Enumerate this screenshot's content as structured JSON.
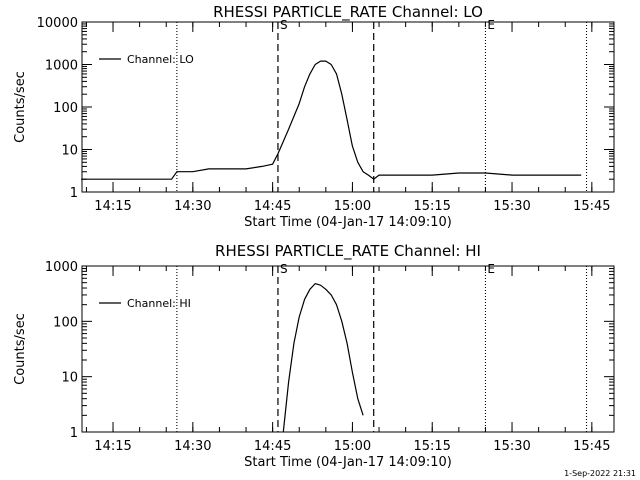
{
  "footer_stamp": "1-Sep-2022 21:31",
  "chart_data": [
    {
      "type": "line",
      "title": "RHESSI PARTICLE_RATE Channel: LO",
      "xlabel": "Start Time (04-Jan-17 14:09:10)",
      "ylabel": "Counts/sec",
      "y_scale": "log",
      "ylim": [
        1,
        10000
      ],
      "y_tick_labels": [
        "1",
        "10",
        "100",
        "1000",
        "10000"
      ],
      "y_tick_values": [
        1,
        10,
        100,
        1000,
        10000
      ],
      "x_range": [
        "14:09:10",
        "15:49:10"
      ],
      "x_tick_labels": [
        "14:15",
        "14:30",
        "14:45",
        "15:00",
        "15:15",
        "15:30",
        "15:45"
      ],
      "x_tick_times": [
        "14:15",
        "14:30",
        "14:45",
        "15:00",
        "15:15",
        "15:30",
        "15:45"
      ],
      "legend": {
        "label": "Channel: LO",
        "placement": "top-left"
      },
      "markers": [
        {
          "label": "",
          "time": "14:27",
          "style": "dotted"
        },
        {
          "label": "S",
          "time": "14:46",
          "style": "dashed"
        },
        {
          "label": "",
          "time": "15:04",
          "style": "dashed"
        },
        {
          "label": "E",
          "time": "15:25",
          "style": "dotted"
        },
        {
          "label": "",
          "time": "15:44",
          "style": "dotted"
        }
      ],
      "series": [
        {
          "name": "Channel: LO",
          "x": [
            "14:09",
            "14:14",
            "14:19",
            "14:24",
            "14:26",
            "14:27",
            "14:30",
            "14:33",
            "14:37",
            "14:40",
            "14:43",
            "14:45",
            "14:46",
            "14:48",
            "14:50",
            "14:51",
            "14:52",
            "14:53",
            "14:54",
            "14:55",
            "14:56",
            "14:57",
            "14:58",
            "14:59",
            "15:00",
            "15:01",
            "15:02",
            "15:03",
            "15:04",
            "15:05",
            "15:06",
            "15:07",
            "15:10",
            "15:15",
            "15:20",
            "15:25",
            "15:30",
            "15:35",
            "15:40",
            "15:43"
          ],
          "values": [
            2,
            2,
            2,
            2,
            2,
            3,
            3,
            3.5,
            3.5,
            3.5,
            4,
            4.5,
            8,
            30,
            120,
            300,
            600,
            1000,
            1200,
            1200,
            1000,
            600,
            200,
            50,
            12,
            5,
            3,
            2.5,
            2,
            2.5,
            2.5,
            2.5,
            2.5,
            2.5,
            2.8,
            2.8,
            2.5,
            2.5,
            2.5,
            2.5
          ]
        }
      ]
    },
    {
      "type": "line",
      "title": "RHESSI PARTICLE_RATE Channel: HI",
      "xlabel": "Start Time (04-Jan-17 14:09:10)",
      "ylabel": "Counts/sec",
      "y_scale": "log",
      "ylim": [
        1,
        1000
      ],
      "y_tick_labels": [
        "1",
        "10",
        "100",
        "1000"
      ],
      "y_tick_values": [
        1,
        10,
        100,
        1000
      ],
      "x_range": [
        "14:09:10",
        "15:49:10"
      ],
      "x_tick_labels": [
        "14:15",
        "14:30",
        "14:45",
        "15:00",
        "15:15",
        "15:30",
        "15:45"
      ],
      "x_tick_times": [
        "14:15",
        "14:30",
        "14:45",
        "15:00",
        "15:15",
        "15:30",
        "15:45"
      ],
      "legend": {
        "label": "Channel: HI",
        "placement": "top-left"
      },
      "markers": [
        {
          "label": "",
          "time": "14:27",
          "style": "dotted"
        },
        {
          "label": "S",
          "time": "14:46",
          "style": "dashed"
        },
        {
          "label": "",
          "time": "15:04",
          "style": "dashed"
        },
        {
          "label": "E",
          "time": "15:25",
          "style": "dotted"
        },
        {
          "label": "",
          "time": "15:44",
          "style": "dotted"
        }
      ],
      "series": [
        {
          "name": "Channel: HI",
          "x": [
            "14:47",
            "14:48",
            "14:49",
            "14:50",
            "14:51",
            "14:52",
            "14:53",
            "14:54",
            "14:55",
            "14:56",
            "14:57",
            "14:58",
            "14:59",
            "15:00",
            "15:01",
            "15:02"
          ],
          "values": [
            1,
            8,
            40,
            120,
            250,
            380,
            480,
            450,
            380,
            300,
            200,
            100,
            40,
            12,
            4,
            2
          ]
        }
      ]
    }
  ]
}
